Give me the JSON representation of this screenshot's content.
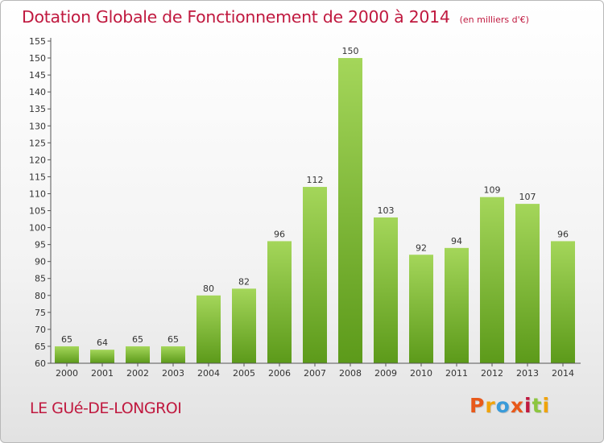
{
  "header": {
    "title": "Dotation Globale de Fonctionnement de 2000 à 2014",
    "subtitle": "(en milliers d'€)"
  },
  "footer": {
    "place": "LE GUé-DE-LONGROI",
    "logo": "Proxiti",
    "logo_colors": [
      "#e8591a",
      "#f0a30a",
      "#3a9bd9",
      "#e8591a",
      "#c0193f",
      "#8cc63f",
      "#f0a30a"
    ]
  },
  "chart_data": {
    "type": "bar",
    "title": "Dotation Globale de Fonctionnement de 2000 à 2014",
    "subtitle": "(en milliers d'€)",
    "xlabel": "",
    "ylabel": "",
    "categories": [
      "2000",
      "2001",
      "2002",
      "2003",
      "2004",
      "2005",
      "2006",
      "2007",
      "2008",
      "2009",
      "2010",
      "2011",
      "2012",
      "2013",
      "2014"
    ],
    "values": [
      65,
      64,
      65,
      65,
      80,
      82,
      96,
      112,
      150,
      103,
      92,
      94,
      109,
      107,
      96
    ],
    "ylim": [
      60,
      155
    ],
    "yticks": [
      60,
      65,
      70,
      75,
      80,
      85,
      90,
      95,
      100,
      105,
      110,
      115,
      120,
      125,
      130,
      135,
      140,
      145,
      150,
      155
    ],
    "grid": false,
    "bar_color_top": "#a4d65a",
    "bar_color_bottom": "#5c9a1a"
  }
}
